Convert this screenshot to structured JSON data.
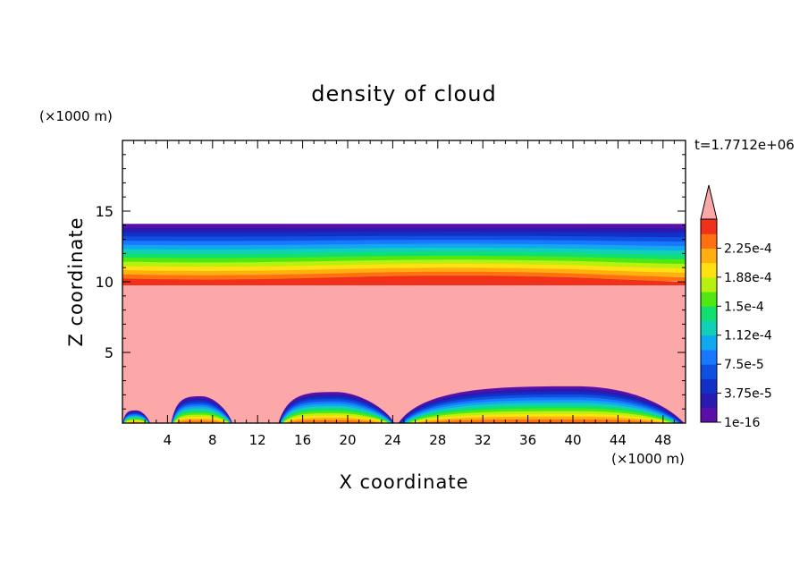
{
  "chart_data": {
    "type": "heatmap",
    "title": "density of cloud",
    "xlabel": "X coordinate",
    "ylabel": "Z coordinate",
    "x_unit": "(×1000 m)",
    "y_unit": "(×1000 m)",
    "time_label": "t=1.7712e+06",
    "xlim": [
      0,
      50
    ],
    "ylim": [
      0,
      20
    ],
    "x_ticks": [
      4,
      8,
      12,
      16,
      20,
      24,
      28,
      32,
      36,
      40,
      44,
      48
    ],
    "y_ticks": [
      5,
      10,
      15
    ],
    "colorbar": {
      "labels": [
        "1e-16",
        "3.75e-5",
        "7.5e-5",
        "1.12e-4",
        "1.5e-4",
        "1.88e-4",
        "2.25e-4"
      ],
      "levels": [
        1e-16,
        1.875e-05,
        3.75e-05,
        5.625e-05,
        7.5e-05,
        9.375e-05,
        0.0001125,
        0.00013125,
        0.00015,
        0.00016875,
        0.0001875,
        0.00020625,
        0.000225,
        0.00024375
      ],
      "colors": [
        "#5a10a8",
        "#2a1ab0",
        "#1030c8",
        "#1050e0",
        "#1a78ff",
        "#12a8f0",
        "#10d0b8",
        "#10e070",
        "#50e810",
        "#b8f010",
        "#ffe010",
        "#ffb010",
        "#ff7010",
        "#f03018"
      ],
      "over_color": "#fca8a8",
      "extend": "max"
    },
    "field": {
      "cloud_base_km": 10.0,
      "cloud_top_km": 14.1,
      "layer_value_top_to_base": [
        "low",
        "high"
      ],
      "interior_value": "over",
      "surface_mounds": [
        {
          "x_start": 0,
          "x_end": 2.5,
          "top_km": 0.9
        },
        {
          "x_start": 4.3,
          "x_end": 9.8,
          "top_km": 1.9
        },
        {
          "x_start": 13.8,
          "x_end": 24.2,
          "top_km": 2.2
        },
        {
          "x_start": 24.4,
          "x_end": 50,
          "top_km": 2.6
        }
      ]
    }
  }
}
